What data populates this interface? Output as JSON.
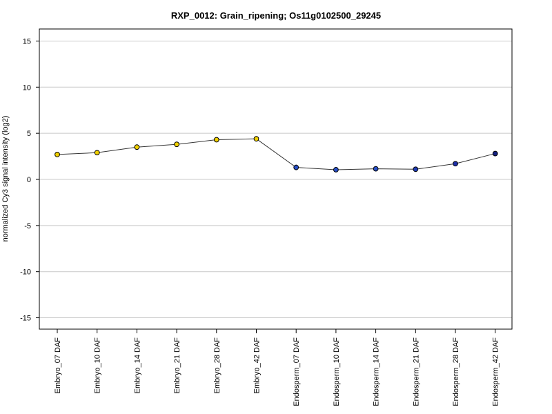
{
  "chart_data": {
    "type": "line",
    "title": "RXP_0012: Grain_ripening; Os11g0102500_29245",
    "xlabel": "",
    "ylabel": "normalized Cy3 signal intensity (log2)",
    "ylim": [
      -16,
      16
    ],
    "yticks": [
      -15,
      -10,
      -5,
      0,
      5,
      10,
      15
    ],
    "grid": "horizontal",
    "categories": [
      "Embryo_07 DAF",
      "Embryo_10 DAF",
      "Embryo_14 DAF",
      "Embryo_21 DAF",
      "Embryo_28 DAF",
      "Embryo_42 DAF",
      "Endosperm_07 DAF",
      "Endosperm_10 DAF",
      "Endosperm_14 DAF",
      "Endosperm_21 DAF",
      "Endosperm_28 DAF",
      "Endosperm_42 DAF"
    ],
    "series": [
      {
        "values": [
          2.7,
          2.9,
          3.5,
          3.8,
          4.3,
          4.4,
          1.3,
          1.05,
          1.15,
          1.1,
          1.7,
          2.8
        ],
        "errors": [
          0,
          0,
          0,
          0,
          0,
          0,
          0.3,
          0,
          0,
          0,
          0,
          0
        ],
        "colors": [
          "#f0d000",
          "#f0d000",
          "#f0d000",
          "#f0d000",
          "#f0d000",
          "#f0d000",
          "#2850c8",
          "#2850c8",
          "#2850c8",
          "#1e3cb4",
          "#1e2ea8",
          "#142080"
        ]
      }
    ]
  }
}
